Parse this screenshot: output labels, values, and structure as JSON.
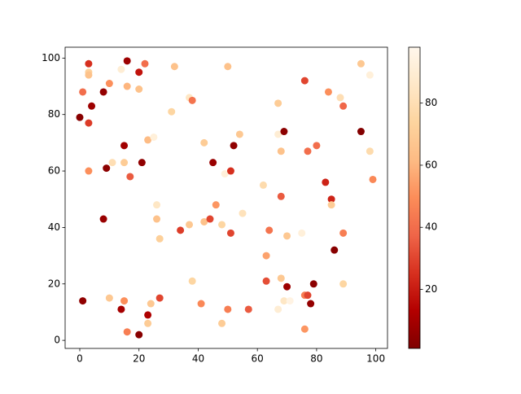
{
  "chart_data": {
    "type": "scatter",
    "x": [
      0,
      1,
      1,
      3,
      3,
      3,
      3,
      3,
      4,
      8,
      8,
      9,
      10,
      10,
      11,
      14,
      14,
      15,
      15,
      15,
      16,
      16,
      16,
      17,
      20,
      20,
      20,
      21,
      22,
      23,
      23,
      23,
      24,
      25,
      26,
      26,
      27,
      27,
      31,
      32,
      34,
      37,
      37,
      38,
      38,
      41,
      42,
      42,
      44,
      45,
      46,
      48,
      48,
      49,
      50,
      50,
      51,
      51,
      52,
      54,
      55,
      57,
      62,
      63,
      63,
      64,
      67,
      67,
      67,
      68,
      68,
      68,
      69,
      69,
      70,
      70,
      71,
      75,
      76,
      76,
      76,
      77,
      77,
      78,
      79,
      80,
      83,
      84,
      85,
      85,
      86,
      88,
      89,
      89,
      89,
      95,
      95,
      98,
      98,
      99
    ],
    "y": [
      79,
      88,
      14,
      98,
      95,
      94,
      77,
      60,
      83,
      88,
      43,
      61,
      91,
      15,
      63,
      96,
      11,
      69,
      63,
      14,
      99,
      90,
      3,
      58,
      95,
      89,
      2,
      63,
      98,
      71,
      9,
      6,
      13,
      72,
      48,
      43,
      15,
      36,
      81,
      97,
      39,
      86,
      41,
      85,
      21,
      13,
      70,
      42,
      43,
      63,
      48,
      41,
      6,
      59,
      97,
      11,
      60,
      38,
      69,
      73,
      45,
      11,
      55,
      30,
      21,
      39,
      84,
      73,
      11,
      67,
      51,
      22,
      74,
      14,
      19,
      37,
      14,
      38,
      92,
      16,
      4,
      16,
      67,
      13,
      20,
      69,
      56,
      88,
      50,
      48,
      32,
      86,
      83,
      38,
      20,
      98,
      74,
      94,
      67,
      57
    ],
    "c": [
      3,
      40,
      5,
      25,
      72,
      65,
      28,
      50,
      8,
      6,
      7,
      4,
      50,
      68,
      80,
      90,
      10,
      9,
      70,
      50,
      8,
      60,
      45,
      35,
      18,
      65,
      3,
      5,
      40,
      62,
      12,
      70,
      68,
      92,
      85,
      65,
      30,
      72,
      75,
      65,
      28,
      85,
      68,
      42,
      75,
      48,
      70,
      65,
      30,
      7,
      52,
      75,
      70,
      92,
      65,
      45,
      25,
      30,
      5,
      68,
      82,
      35,
      78,
      55,
      32,
      42,
      70,
      90,
      90,
      65,
      35,
      68,
      4,
      85,
      8,
      68,
      95,
      92,
      30,
      45,
      52,
      30,
      40,
      6,
      4,
      40,
      22,
      50,
      22,
      70,
      3,
      80,
      38,
      45,
      75,
      68,
      2,
      92,
      78,
      48
    ],
    "colormap": [
      "#7f0000",
      "#b30000",
      "#d7301f",
      "#ef6548",
      "#fc8d59",
      "#fdbb84",
      "#fdd49e",
      "#fee8c8",
      "#fff7ec"
    ],
    "clim": [
      1,
      98
    ],
    "cticks": [
      20,
      40,
      60,
      80
    ],
    "xlim": [
      -4.95,
      103.95
    ],
    "xticks": [
      0,
      20,
      40,
      60,
      80,
      100
    ],
    "ylim": [
      -2.85,
      103.85
    ],
    "yticks": [
      0,
      20,
      40,
      60,
      80,
      100
    ],
    "grid": false
  }
}
